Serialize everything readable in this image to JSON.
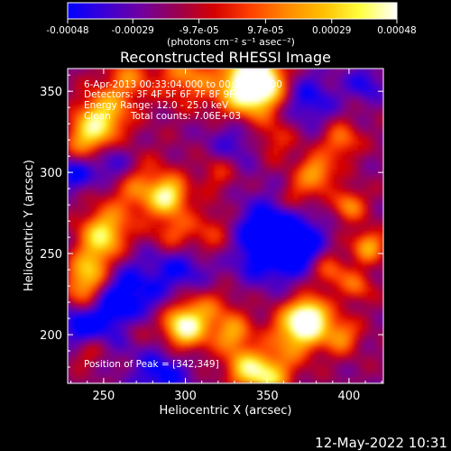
{
  "colorbar": {
    "tick_labels": [
      "-0.00048",
      "-0.00029",
      "-9.7e-05",
      "9.7e-05",
      "0.00029",
      "0.00048"
    ],
    "tick_values": [
      -0.00048,
      -0.00029,
      -9.7e-05,
      9.7e-05,
      0.00029,
      0.00048
    ],
    "range": [
      -0.00048,
      0.00048
    ],
    "units": "(photons cm⁻² s⁻¹ asec⁻²)",
    "colormap": [
      "#0000ff",
      "#3a00d6",
      "#7000a0",
      "#9a0050",
      "#d40000",
      "#ff4000",
      "#ff8a00",
      "#ffc000",
      "#ffff40",
      "#ffffff"
    ]
  },
  "chart_data": {
    "type": "heatmap",
    "title": "Reconstructed RHESSI Image",
    "xlabel": "Heliocentric X (arcsec)",
    "ylabel": "Heliocentric Y (arcsec)",
    "xlim": [
      228,
      421
    ],
    "ylim": [
      170,
      364
    ],
    "x_ticks": [
      "250",
      "300",
      "350",
      "400"
    ],
    "x_tick_values": [
      250,
      300,
      350,
      400
    ],
    "y_ticks": [
      "200",
      "250",
      "300",
      "350"
    ],
    "y_tick_values": [
      200,
      250,
      300,
      350
    ],
    "peak": [
      342,
      349
    ],
    "annotations": {
      "time": "6-Apr-2013 00:33:04.000 to 00:33:40.000",
      "detectors": "Detectors: 3F 4F 5F 6F 7F 8F 9F",
      "energy": "Energy Range: 12.0 - 25.0 keV",
      "method": "Clean",
      "counts": "Total counts: 7.06E+03",
      "peak_text": "Position of Peak = [342,349]"
    }
  },
  "footer": {
    "date": "12-May-2022 10:31"
  }
}
